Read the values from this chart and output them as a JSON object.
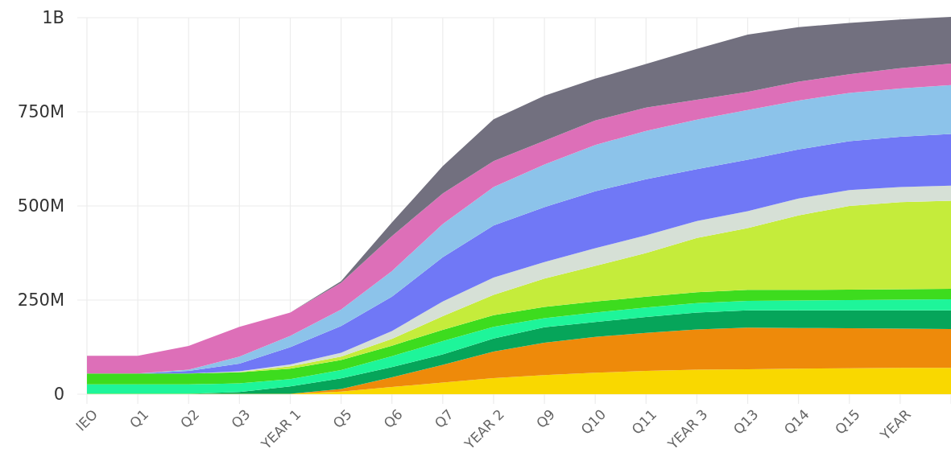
{
  "chart_data": {
    "type": "area",
    "stacked": true,
    "grid": true,
    "categories": [
      "IEO",
      "Q1",
      "Q2",
      "Q3",
      "YEAR 1",
      "Q5",
      "Q6",
      "Q7",
      "YEAR 2",
      "Q9",
      "Q10",
      "Q11",
      "YEAR 3",
      "Q13",
      "Q14",
      "Q15",
      "YEAR",
      null
    ],
    "ylim": [
      0,
      1000000000
    ],
    "yticks": [
      0,
      {
        "value": 250000000,
        "label": "250M"
      },
      {
        "value": 500000000,
        "label": "500M"
      },
      {
        "value": 750000000,
        "label": "750M"
      },
      {
        "value": 1000000000,
        "label": "1B"
      }
    ],
    "series": [
      {
        "color": "#f9d800",
        "values": [
          1000000,
          1000000,
          1000000,
          1000000,
          1000000,
          7000000,
          19000000,
          31000000,
          43000000,
          51000000,
          57000000,
          62000000,
          65000000,
          66000000,
          68000000,
          69000000,
          70000000,
          70000000
        ]
      },
      {
        "color": "#ee8a0a",
        "values": [
          0,
          0,
          0,
          0,
          0,
          7000000,
          26000000,
          47000000,
          70000000,
          86000000,
          95000000,
          101000000,
          107000000,
          111000000,
          108000000,
          106000000,
          104000000,
          103000000
        ]
      },
      {
        "color": "#06a55a",
        "values": [
          0,
          0,
          0,
          5000000,
          20000000,
          28000000,
          27000000,
          28000000,
          35000000,
          41000000,
          40000000,
          42000000,
          45000000,
          46000000,
          47000000,
          48000000,
          49000000,
          50000000
        ]
      },
      {
        "color": "#1ef59a",
        "values": [
          25000000,
          25000000,
          25000000,
          23000000,
          19000000,
          22000000,
          29000000,
          35000000,
          31000000,
          24000000,
          25000000,
          25000000,
          25000000,
          25000000,
          26000000,
          27000000,
          28000000,
          29000000
        ]
      },
      {
        "color": "#3ddc1e",
        "values": [
          29000000,
          29000000,
          29000000,
          29000000,
          28000000,
          27000000,
          28000000,
          30000000,
          31000000,
          30000000,
          29000000,
          29000000,
          29000000,
          29000000,
          28000000,
          28000000,
          28000000,
          28000000
        ]
      },
      {
        "color": "#c5ec3b",
        "values": [
          0,
          0,
          0,
          1000000,
          6000000,
          9000000,
          18000000,
          36000000,
          54000000,
          75000000,
          95000000,
          116000000,
          144000000,
          164000000,
          198000000,
          222000000,
          231000000,
          234000000
        ]
      },
      {
        "color": "#d6e0d6",
        "values": [
          0,
          0,
          0,
          2000000,
          5000000,
          10000000,
          21000000,
          39000000,
          46000000,
          44000000,
          47000000,
          47000000,
          45000000,
          45000000,
          45000000,
          42000000,
          40000000,
          40000000
        ]
      },
      {
        "color": "#7078f6",
        "values": [
          0,
          0,
          7000000,
          20000000,
          46000000,
          71000000,
          91000000,
          118000000,
          138000000,
          146000000,
          151000000,
          149000000,
          138000000,
          137000000,
          130000000,
          130000000,
          134000000,
          137000000
        ]
      },
      {
        "color": "#8cc3ea",
        "values": [
          0,
          0,
          3000000,
          19000000,
          30000000,
          44000000,
          68000000,
          88000000,
          102000000,
          113000000,
          123000000,
          128000000,
          131000000,
          132000000,
          130000000,
          128000000,
          128000000,
          130000000
        ]
      },
      {
        "color": "#dd6fb8",
        "values": [
          47000000,
          47000000,
          63000000,
          79000000,
          62000000,
          71000000,
          93000000,
          81000000,
          69000000,
          63000000,
          65000000,
          62000000,
          53000000,
          48000000,
          50000000,
          50000000,
          54000000,
          57000000
        ]
      },
      {
        "color": "#72707f",
        "values": [
          0,
          0,
          0,
          0,
          0,
          4000000,
          36000000,
          73000000,
          111000000,
          120000000,
          111000000,
          116000000,
          135000000,
          152000000,
          145000000,
          136000000,
          129000000,
          124000000
        ]
      }
    ]
  }
}
